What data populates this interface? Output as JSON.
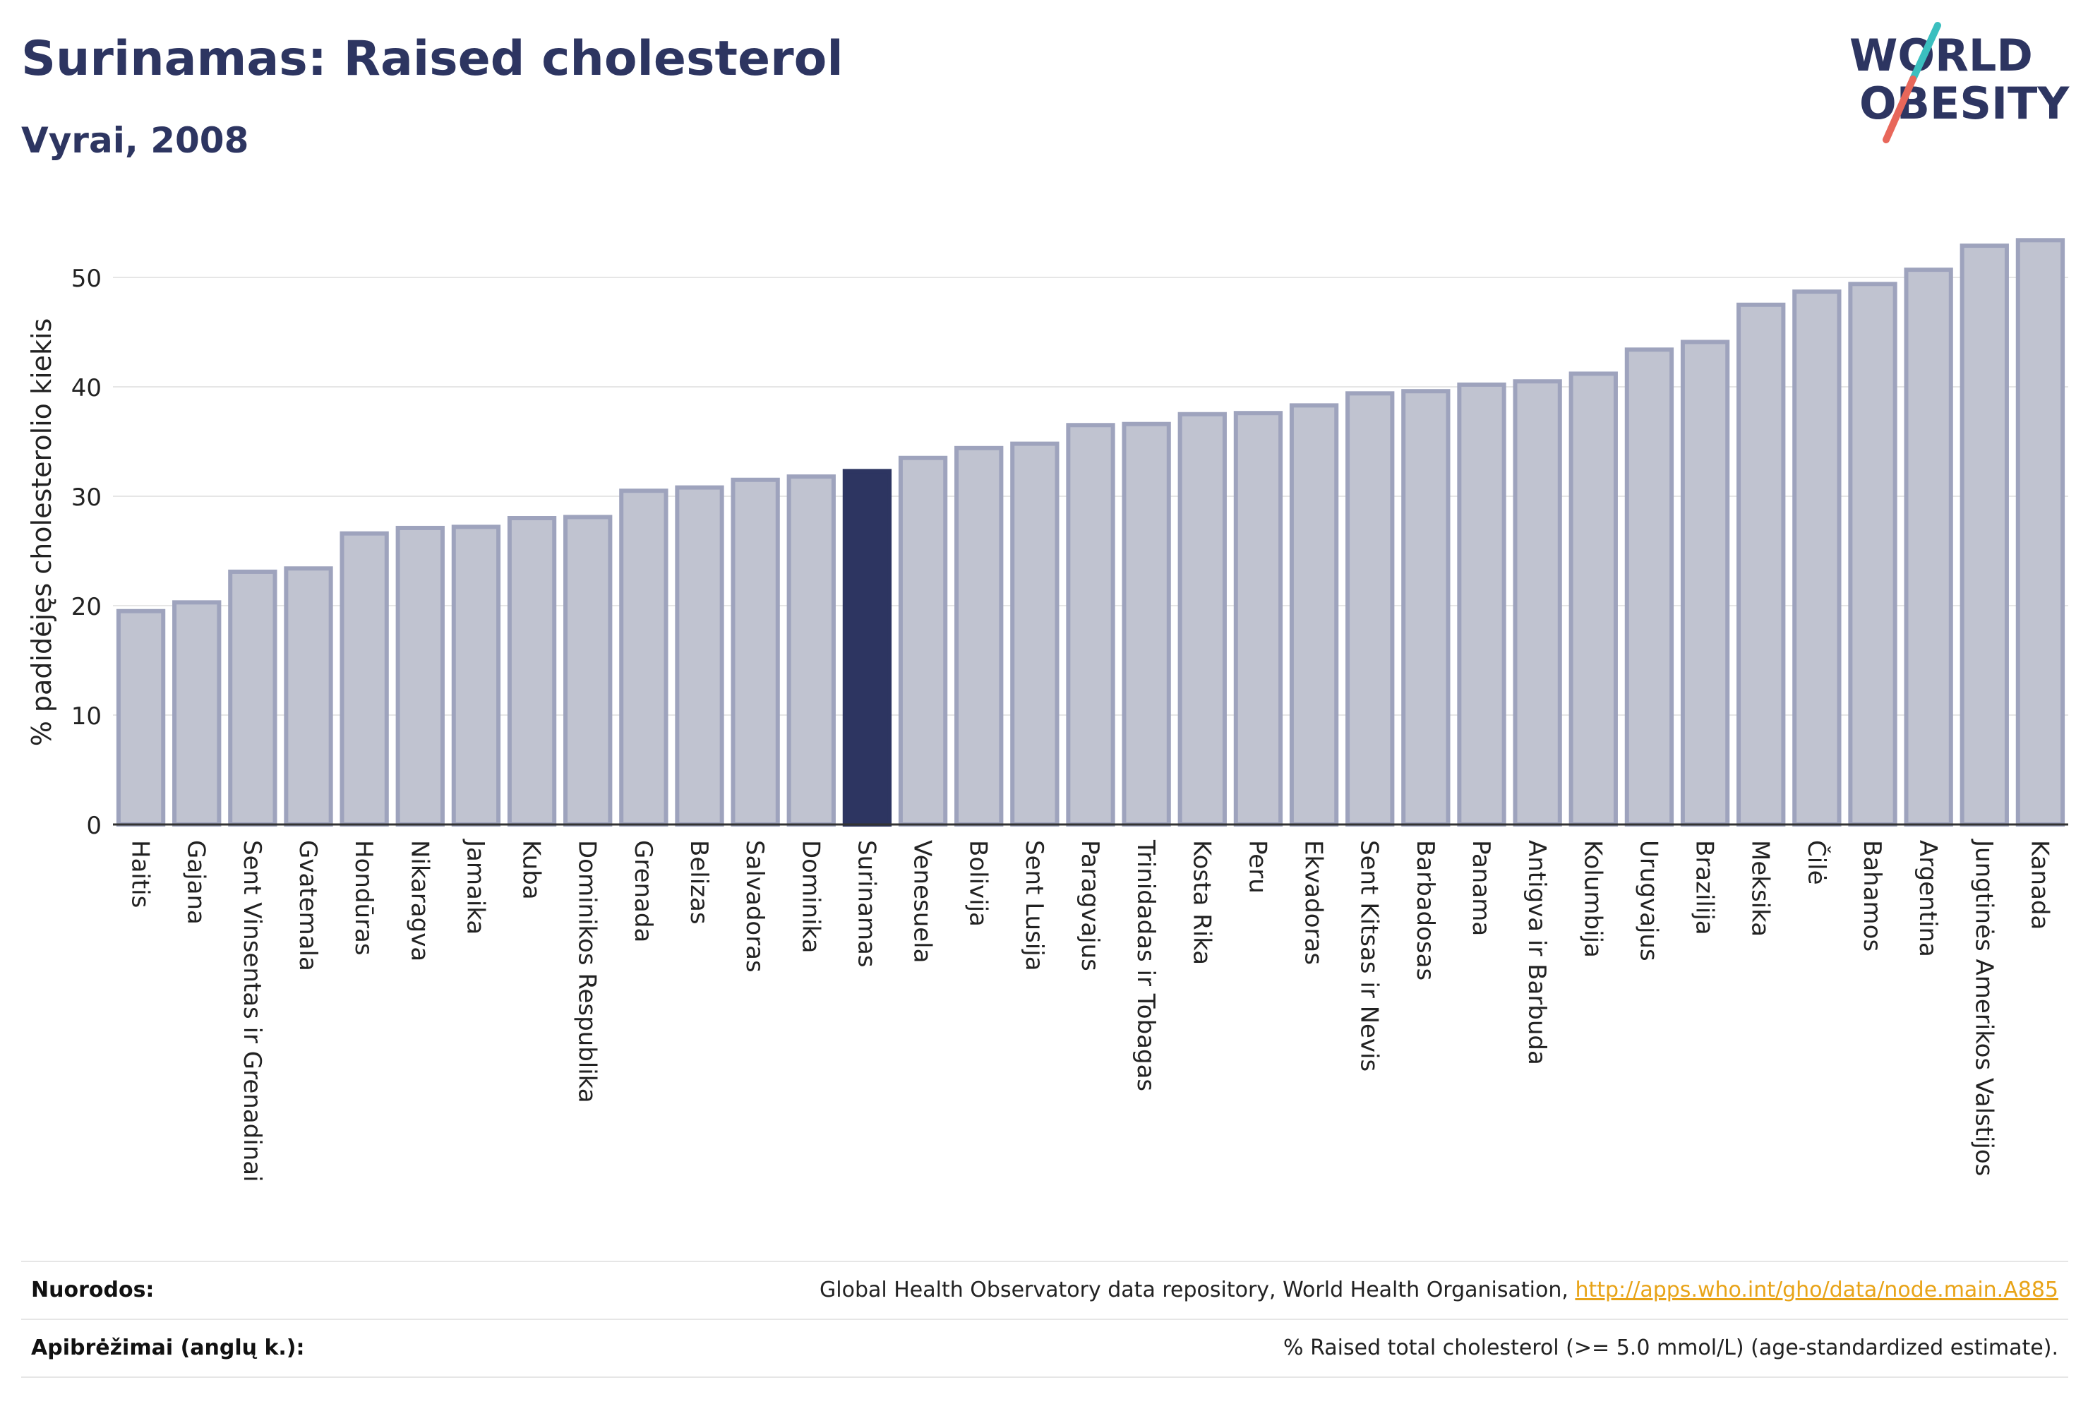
{
  "title": "Surinamas: Raised cholesterol",
  "subtitle": "Vyrai, 2008",
  "logo": {
    "line1": "WORLD",
    "line2": "OBESITY",
    "colors": {
      "text": "#2d3561",
      "slash_teal": "#3bbfbf",
      "slash_coral": "#e8675a"
    }
  },
  "chart_data": {
    "type": "bar",
    "ylabel": "% padidėjęs cholesterolio kiekis",
    "ylim": [
      0,
      56
    ],
    "yticks": [
      0,
      10,
      20,
      30,
      40,
      50
    ],
    "grid": true,
    "highlight": "Surinamas",
    "colors": {
      "bar_fill": "#c0c3d0",
      "bar_stroke": "#9ea3bd",
      "highlight_fill": "#2d3561",
      "grid": "#e6e6e6",
      "axis": "#333333"
    },
    "categories": [
      "Haitis",
      "Gajana",
      "Sent Vinsentas ir Grenadinai",
      "Gvatemala",
      "Hondūras",
      "Nikaragva",
      "Jamaika",
      "Kuba",
      "Dominikos Respublika",
      "Grenada",
      "Belizas",
      "Salvadoras",
      "Dominika",
      "Surinamas",
      "Venesuela",
      "Bolivija",
      "Sent Lusija",
      "Paragvajus",
      "Trinidadas ir Tobagas",
      "Kosta Rika",
      "Peru",
      "Ekvadoras",
      "Sent Kitsas ir Nevis",
      "Barbadosas",
      "Panama",
      "Antigva ir Barbuda",
      "Kolumbija",
      "Urugvajus",
      "Brazilija",
      "Meksika",
      "Čilė",
      "Bahamos",
      "Argentina",
      "Jungtinės Amerikos Valstijos",
      "Kanada"
    ],
    "values": [
      19.5,
      20.3,
      23.1,
      23.4,
      26.6,
      27.1,
      27.2,
      28.0,
      28.1,
      30.5,
      30.8,
      31.5,
      31.8,
      32.3,
      33.5,
      34.4,
      34.8,
      36.5,
      36.6,
      37.5,
      37.6,
      38.3,
      39.4,
      39.6,
      40.2,
      40.5,
      41.2,
      43.4,
      44.1,
      47.5,
      48.7,
      49.4,
      50.7,
      52.9,
      53.4
    ]
  },
  "footer": {
    "sources_label": "Nuorodos:",
    "sources_text": "Global Health Observatory data repository, World Health Organisation, ",
    "sources_link": "http://apps.who.int/gho/data/node.main.A885",
    "definitions_label": "Apibrėžimai (anglų k.):",
    "definitions_text": "% Raised total cholesterol (>= 5.0 mmol/L) (age-standardized estimate)."
  }
}
